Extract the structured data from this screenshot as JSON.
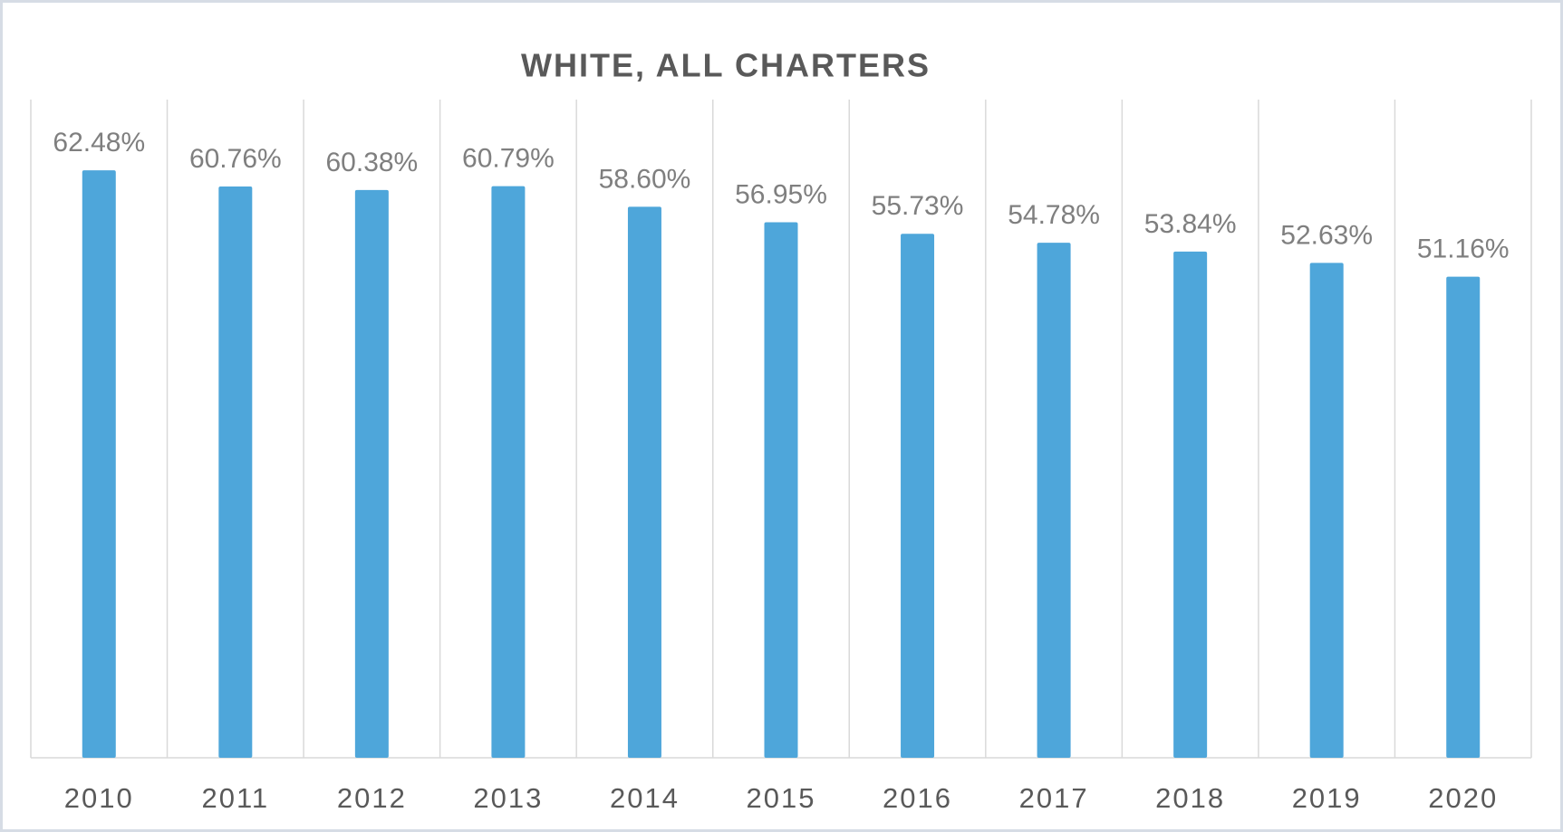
{
  "chart_data": {
    "type": "bar",
    "title": "WHITE, ALL CHARTERS",
    "categories": [
      "2010",
      "2011",
      "2012",
      "2013",
      "2014",
      "2015",
      "2016",
      "2017",
      "2018",
      "2019",
      "2020"
    ],
    "values": [
      62.48,
      60.76,
      60.38,
      60.79,
      58.6,
      56.95,
      55.73,
      54.78,
      53.84,
      52.63,
      51.16
    ],
    "value_labels": [
      "62.48%",
      "60.76%",
      "60.38%",
      "60.79%",
      "58.60%",
      "56.95%",
      "55.73%",
      "54.78%",
      "53.84%",
      "52.63%",
      "51.16%"
    ],
    "color": "#4ea6da",
    "ylim": [
      0,
      70
    ]
  }
}
